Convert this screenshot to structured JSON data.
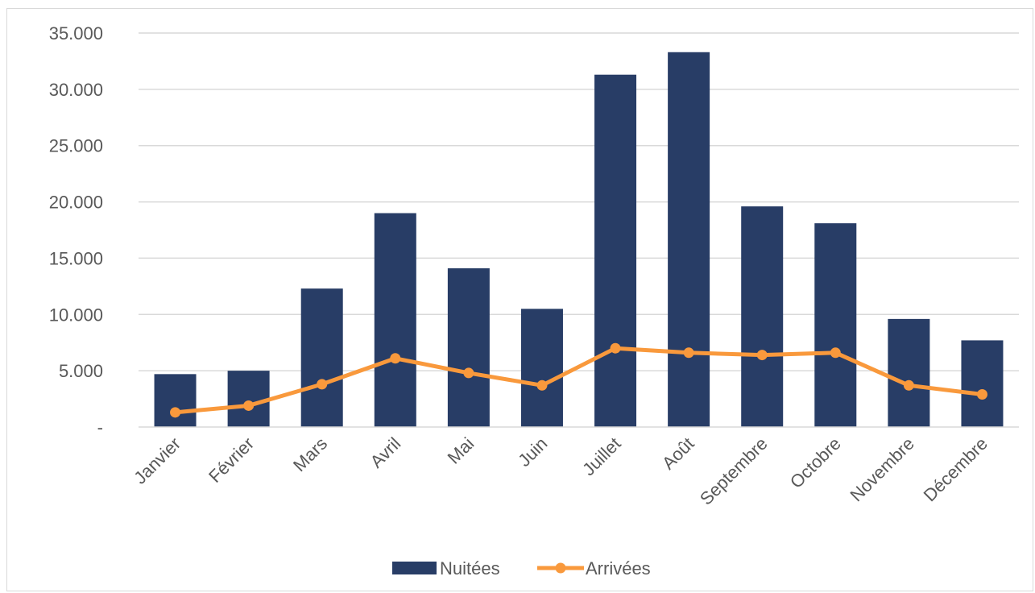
{
  "chart_data": {
    "type": "bar",
    "categories": [
      "Janvier",
      "Février",
      "Mars",
      "Avril",
      "Mai",
      "Juin",
      "Juillet",
      "Août",
      "Septembre",
      "Octobre",
      "Novembre",
      "Décembre"
    ],
    "series": [
      {
        "name": "Nuitées",
        "type": "bar",
        "color": "#283d66",
        "values": [
          4700,
          5000,
          12300,
          19000,
          14100,
          10500,
          31300,
          33300,
          19600,
          18100,
          9600,
          7700
        ]
      },
      {
        "name": "Arrivées",
        "type": "line",
        "color": "#f9993c",
        "values": [
          1300,
          1900,
          3800,
          6100,
          4800,
          3700,
          7000,
          6600,
          6400,
          6600,
          3700,
          2900
        ]
      }
    ],
    "title": "",
    "xlabel": "",
    "ylabel": "",
    "ylim": [
      0,
      35000
    ],
    "yticks": [
      0,
      5000,
      10000,
      15000,
      20000,
      25000,
      30000,
      35000
    ],
    "ytick_labels": [
      "-",
      "5.000",
      "10.000",
      "15.000",
      "20.000",
      "25.000",
      "30.000",
      "35.000"
    ],
    "grid": true,
    "legend": "bottom"
  }
}
